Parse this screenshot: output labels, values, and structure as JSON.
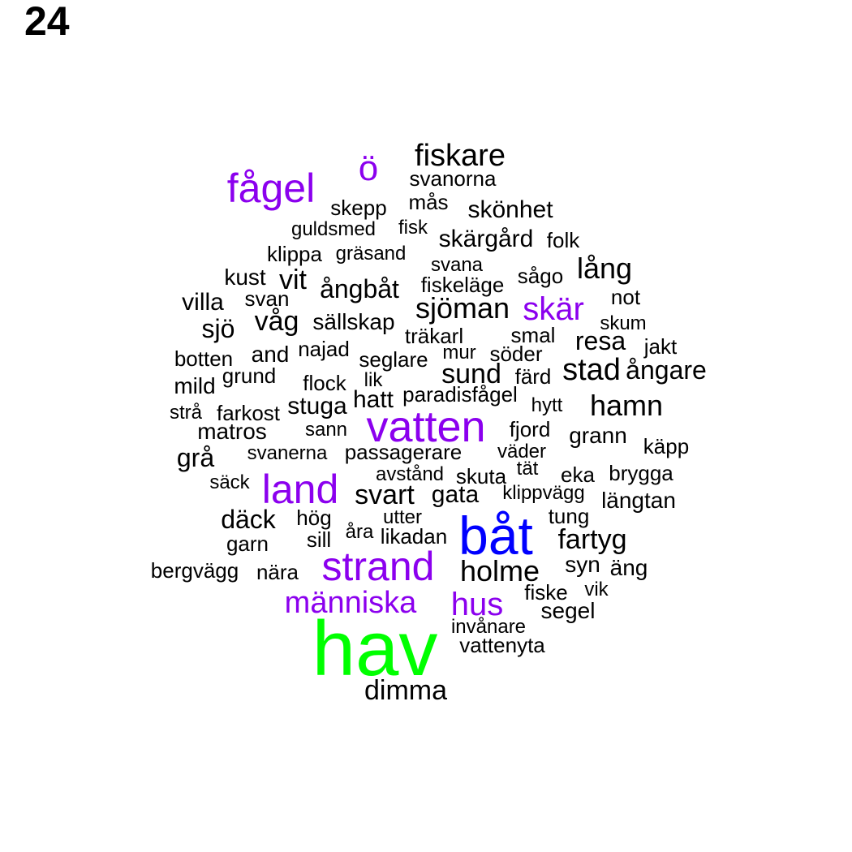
{
  "page_number": "24",
  "colors": {
    "default": "#000000",
    "purple": "#8b00ee",
    "blue": "#0000ff",
    "green": "#00ff00"
  },
  "words": [
    {
      "text": "hav",
      "color": "green"
    },
    {
      "text": "båt",
      "color": "blue"
    },
    {
      "text": "vatten",
      "color": "purple"
    },
    {
      "text": "strand",
      "color": "purple"
    },
    {
      "text": "land",
      "color": "purple"
    },
    {
      "text": "fågel",
      "color": "purple"
    },
    {
      "text": "ö",
      "color": "purple"
    },
    {
      "text": "skär",
      "color": "purple"
    },
    {
      "text": "människa",
      "color": "purple"
    },
    {
      "text": "hus",
      "color": "purple"
    },
    {
      "text": "fiskare",
      "color": "default"
    },
    {
      "text": "svanorna",
      "color": "default"
    },
    {
      "text": "mås",
      "color": "default"
    },
    {
      "text": "skepp",
      "color": "default"
    },
    {
      "text": "skönhet",
      "color": "default"
    },
    {
      "text": "guldsmed",
      "color": "default"
    },
    {
      "text": "fisk",
      "color": "default"
    },
    {
      "text": "skärgård",
      "color": "default"
    },
    {
      "text": "folk",
      "color": "default"
    },
    {
      "text": "klippa",
      "color": "default"
    },
    {
      "text": "gräsand",
      "color": "default"
    },
    {
      "text": "svana",
      "color": "default"
    },
    {
      "text": "lång",
      "color": "default"
    },
    {
      "text": "kust",
      "color": "default"
    },
    {
      "text": "vit",
      "color": "default"
    },
    {
      "text": "ångbåt",
      "color": "default"
    },
    {
      "text": "fiskeläge",
      "color": "default"
    },
    {
      "text": "sågo",
      "color": "default"
    },
    {
      "text": "villa",
      "color": "default"
    },
    {
      "text": "svan",
      "color": "default"
    },
    {
      "text": "not",
      "color": "default"
    },
    {
      "text": "sjöman",
      "color": "default"
    },
    {
      "text": "sjö",
      "color": "default"
    },
    {
      "text": "våg",
      "color": "default"
    },
    {
      "text": "sällskap",
      "color": "default"
    },
    {
      "text": "skum",
      "color": "default"
    },
    {
      "text": "träkarl",
      "color": "default"
    },
    {
      "text": "smal",
      "color": "default"
    },
    {
      "text": "resa",
      "color": "default"
    },
    {
      "text": "botten",
      "color": "default"
    },
    {
      "text": "and",
      "color": "default"
    },
    {
      "text": "najad",
      "color": "default"
    },
    {
      "text": "seglare",
      "color": "default"
    },
    {
      "text": "mur",
      "color": "default"
    },
    {
      "text": "söder",
      "color": "default"
    },
    {
      "text": "jakt",
      "color": "default"
    },
    {
      "text": "mild",
      "color": "default"
    },
    {
      "text": "grund",
      "color": "default"
    },
    {
      "text": "flock",
      "color": "default"
    },
    {
      "text": "lik",
      "color": "default"
    },
    {
      "text": "sund",
      "color": "default"
    },
    {
      "text": "färd",
      "color": "default"
    },
    {
      "text": "stad",
      "color": "default"
    },
    {
      "text": "ångare",
      "color": "default"
    },
    {
      "text": "strå",
      "color": "default"
    },
    {
      "text": "farkost",
      "color": "default"
    },
    {
      "text": "stuga",
      "color": "default"
    },
    {
      "text": "hatt",
      "color": "default"
    },
    {
      "text": "paradisfågel",
      "color": "default"
    },
    {
      "text": "hytt",
      "color": "default"
    },
    {
      "text": "hamn",
      "color": "default"
    },
    {
      "text": "matros",
      "color": "default"
    },
    {
      "text": "sann",
      "color": "default"
    },
    {
      "text": "fjord",
      "color": "default"
    },
    {
      "text": "grann",
      "color": "default"
    },
    {
      "text": "käpp",
      "color": "default"
    },
    {
      "text": "grå",
      "color": "default"
    },
    {
      "text": "svanerna",
      "color": "default"
    },
    {
      "text": "passagerare",
      "color": "default"
    },
    {
      "text": "väder",
      "color": "default"
    },
    {
      "text": "avstånd",
      "color": "default"
    },
    {
      "text": "skuta",
      "color": "default"
    },
    {
      "text": "tät",
      "color": "default"
    },
    {
      "text": "eka",
      "color": "default"
    },
    {
      "text": "brygga",
      "color": "default"
    },
    {
      "text": "säck",
      "color": "default"
    },
    {
      "text": "svart",
      "color": "default"
    },
    {
      "text": "gata",
      "color": "default"
    },
    {
      "text": "klippvägg",
      "color": "default"
    },
    {
      "text": "längtan",
      "color": "default"
    },
    {
      "text": "däck",
      "color": "default"
    },
    {
      "text": "hög",
      "color": "default"
    },
    {
      "text": "utter",
      "color": "default"
    },
    {
      "text": "tung",
      "color": "default"
    },
    {
      "text": "åra",
      "color": "default"
    },
    {
      "text": "likadan",
      "color": "default"
    },
    {
      "text": "garn",
      "color": "default"
    },
    {
      "text": "sill",
      "color": "default"
    },
    {
      "text": "fartyg",
      "color": "default"
    },
    {
      "text": "bergvägg",
      "color": "default"
    },
    {
      "text": "nära",
      "color": "default"
    },
    {
      "text": "holme",
      "color": "default"
    },
    {
      "text": "syn",
      "color": "default"
    },
    {
      "text": "äng",
      "color": "default"
    },
    {
      "text": "fiske",
      "color": "default"
    },
    {
      "text": "vik",
      "color": "default"
    },
    {
      "text": "segel",
      "color": "default"
    },
    {
      "text": "invånare",
      "color": "default"
    },
    {
      "text": "vattenyta",
      "color": "default"
    },
    {
      "text": "dimma",
      "color": "default"
    }
  ]
}
